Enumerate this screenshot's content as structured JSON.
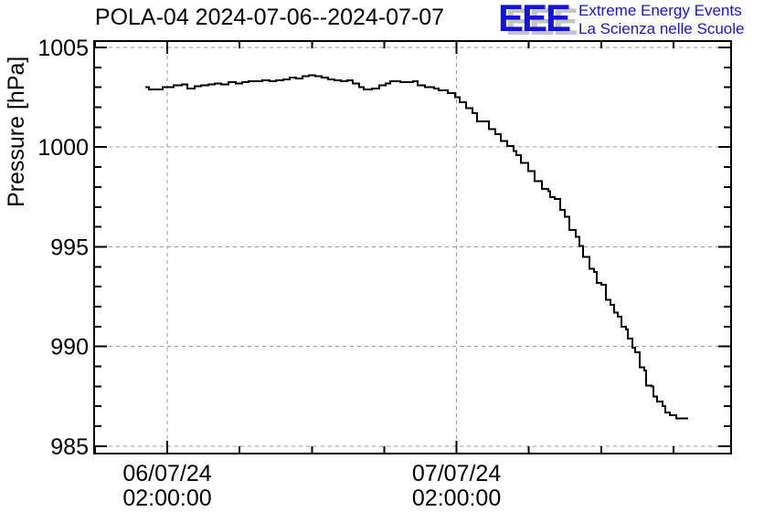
{
  "header": {
    "logo": {
      "acronym": "EEE",
      "line1": "Extreme Energy Events",
      "line2": "La Scienza nelle Scuole",
      "blue": "#1414d6",
      "shadow_gray": "#c4c4c4"
    }
  },
  "chart_data": {
    "type": "line",
    "style": "step",
    "title": "POLA-04 2024-07-06--2024-07-07",
    "ylabel": "Pressure [hPa]",
    "x_axis_note": "x values are hours relative to the first labeled tick (06/07/24 02:00:00); 24 h separates the two labeled ticks, minor ticks every 6 h",
    "xlim": [
      -6.07,
      46.78
    ],
    "ylim": [
      984.63,
      1005.32
    ],
    "yticks_major": [
      985,
      990,
      995,
      1000,
      1005
    ],
    "ytick_labels": [
      "985",
      "990",
      "995",
      "1000",
      "1005"
    ],
    "yticks_minor_step": 1,
    "xticks_major": [
      0,
      24
    ],
    "xticks_minor": [
      -6,
      6,
      12,
      18,
      30,
      36,
      42
    ],
    "x_tick_labels": [
      {
        "t": 0,
        "lines": [
          "06/07/24",
          "02:00:00"
        ]
      },
      {
        "t": 24,
        "lines": [
          "07/07/24",
          "02:00:00"
        ]
      }
    ],
    "grid": true,
    "legend": "none",
    "colors": {
      "line": "#000000",
      "grid": "#999999",
      "frame": "#000000",
      "text": "#000000"
    },
    "series": [
      {
        "name": "pressure",
        "points": [
          [
            -1.82,
            1003.0
          ],
          [
            -1.52,
            1002.9
          ],
          [
            -0.38,
            1003.0
          ],
          [
            0.53,
            1003.1
          ],
          [
            1.21,
            1003.15
          ],
          [
            1.67,
            1002.95
          ],
          [
            2.27,
            1003.05
          ],
          [
            2.81,
            1003.1
          ],
          [
            3.41,
            1003.15
          ],
          [
            3.94,
            1003.2
          ],
          [
            4.47,
            1003.15
          ],
          [
            5.08,
            1003.25
          ],
          [
            5.69,
            1003.2
          ],
          [
            6.22,
            1003.25
          ],
          [
            6.75,
            1003.3
          ],
          [
            7.88,
            1003.35
          ],
          [
            8.49,
            1003.3
          ],
          [
            9.02,
            1003.35
          ],
          [
            9.63,
            1003.4
          ],
          [
            10.16,
            1003.5
          ],
          [
            10.69,
            1003.45
          ],
          [
            11.22,
            1003.55
          ],
          [
            11.75,
            1003.6
          ],
          [
            12.28,
            1003.55
          ],
          [
            12.81,
            1003.5
          ],
          [
            13.34,
            1003.4
          ],
          [
            13.87,
            1003.35
          ],
          [
            14.4,
            1003.3
          ],
          [
            14.93,
            1003.35
          ],
          [
            15.39,
            1003.2
          ],
          [
            15.92,
            1003.0
          ],
          [
            16.3,
            1002.9
          ],
          [
            16.98,
            1002.95
          ],
          [
            17.59,
            1003.1
          ],
          [
            18.12,
            1003.2
          ],
          [
            18.5,
            1003.3
          ],
          [
            19.33,
            1003.25
          ],
          [
            20.39,
            1003.3
          ],
          [
            20.77,
            1003.1
          ],
          [
            21.38,
            1003.0
          ],
          [
            22.14,
            1002.95
          ],
          [
            22.52,
            1002.85
          ],
          [
            23.27,
            1002.7
          ],
          [
            23.88,
            1002.5
          ],
          [
            24.26,
            1002.25
          ],
          [
            24.79,
            1001.95
          ],
          [
            25.32,
            1001.7
          ],
          [
            25.7,
            1001.3
          ],
          [
            26.69,
            1000.9
          ],
          [
            27.22,
            1000.65
          ],
          [
            27.67,
            1000.3
          ],
          [
            28.2,
            1000.05
          ],
          [
            28.73,
            999.8
          ],
          [
            28.96,
            999.6
          ],
          [
            29.34,
            999.2
          ],
          [
            29.95,
            998.8
          ],
          [
            30.48,
            998.3
          ],
          [
            31.08,
            997.9
          ],
          [
            31.61,
            997.8
          ],
          [
            31.77,
            997.5
          ],
          [
            32.15,
            997.4
          ],
          [
            32.6,
            996.85
          ],
          [
            32.98,
            996.5
          ],
          [
            33.36,
            995.85
          ],
          [
            33.89,
            995.5
          ],
          [
            34.19,
            995.05
          ],
          [
            34.49,
            994.5
          ],
          [
            35.03,
            993.9
          ],
          [
            35.41,
            993.75
          ],
          [
            35.63,
            993.2
          ],
          [
            36.01,
            993.1
          ],
          [
            36.39,
            992.35
          ],
          [
            36.77,
            992.1
          ],
          [
            37.07,
            991.7
          ],
          [
            37.38,
            991.5
          ],
          [
            37.68,
            991.0
          ],
          [
            38.06,
            990.85
          ],
          [
            38.21,
            990.4
          ],
          [
            38.59,
            989.95
          ],
          [
            38.82,
            989.7
          ],
          [
            39.2,
            988.95
          ],
          [
            39.58,
            988.8
          ],
          [
            39.73,
            988.05
          ],
          [
            40.18,
            988.0
          ],
          [
            40.33,
            987.5
          ],
          [
            40.64,
            987.25
          ],
          [
            41.09,
            987.0
          ],
          [
            41.32,
            986.7
          ],
          [
            41.7,
            986.55
          ],
          [
            42.23,
            986.4
          ],
          [
            43.21,
            986.4
          ]
        ]
      }
    ]
  }
}
